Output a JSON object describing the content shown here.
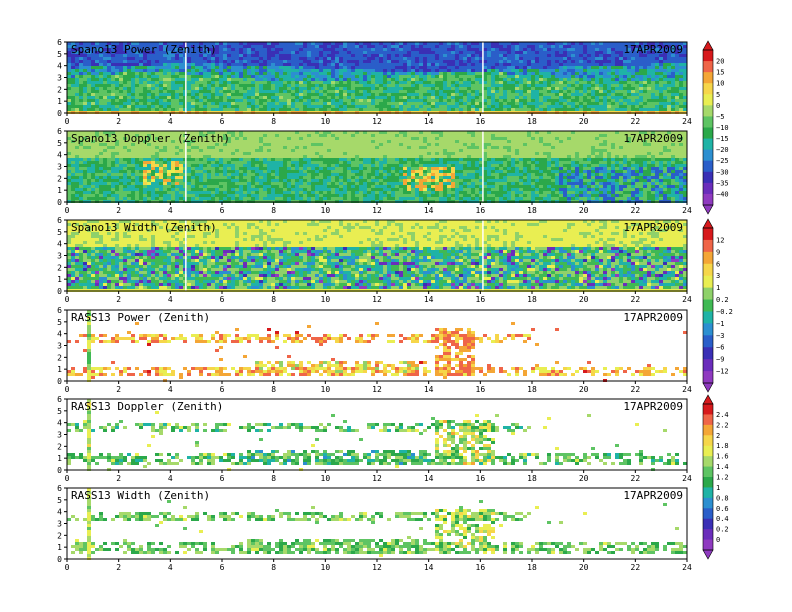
{
  "date_label": "17APR2009",
  "chart_data": [
    {
      "type": "heatmap",
      "title": "Spano13 Power (Zenith)",
      "date": "17APR2009",
      "x_ticks": [
        "0",
        "2",
        "4",
        "6",
        "8",
        "10",
        "12",
        "14",
        "16",
        "18",
        "20",
        "22",
        "24"
      ],
      "y_ticks": [
        "0",
        "1",
        "2",
        "3",
        "4",
        "5",
        "6"
      ],
      "xlim": [
        0,
        24
      ],
      "ylim": [
        0,
        6
      ],
      "colorbar": "cb1",
      "pattern": "power"
    },
    {
      "type": "heatmap",
      "title": "Spano13 Doppler (Zenith)",
      "date": "17APR2009",
      "x_ticks": [
        "0",
        "2",
        "4",
        "6",
        "8",
        "10",
        "12",
        "14",
        "16",
        "18",
        "20",
        "22",
        "24"
      ],
      "y_ticks": [
        "0",
        "1",
        "2",
        "3",
        "4",
        "5",
        "6"
      ],
      "xlim": [
        0,
        24
      ],
      "ylim": [
        0,
        6
      ],
      "colorbar": "cb1",
      "pattern": "doppler"
    },
    {
      "type": "heatmap",
      "title": "Spano13 Width (Zenith)",
      "date": "17APR2009",
      "x_ticks": [
        "0",
        "2",
        "4",
        "6",
        "8",
        "10",
        "12",
        "14",
        "16",
        "18",
        "20",
        "22",
        "24"
      ],
      "y_ticks": [
        "0",
        "1",
        "2",
        "3",
        "4",
        "5",
        "6"
      ],
      "xlim": [
        0,
        24
      ],
      "ylim": [
        0,
        6
      ],
      "colorbar": "cb2",
      "pattern": "width"
    },
    {
      "type": "heatmap",
      "title": "RASS13 Power (Zenith)",
      "date": "17APR2009",
      "x_ticks": [
        "0",
        "2",
        "4",
        "6",
        "8",
        "10",
        "12",
        "14",
        "16",
        "18",
        "20",
        "22",
        "24"
      ],
      "y_ticks": [
        "0",
        "1",
        "2",
        "3",
        "4",
        "5",
        "6"
      ],
      "xlim": [
        0,
        24
      ],
      "ylim": [
        0,
        6
      ],
      "colorbar": "cb2",
      "pattern": "rasspower"
    },
    {
      "type": "heatmap",
      "title": "RASS13 Doppler (Zenith)",
      "date": "17APR2009",
      "x_ticks": [
        "0",
        "2",
        "4",
        "6",
        "8",
        "10",
        "12",
        "14",
        "16",
        "18",
        "20",
        "22",
        "24"
      ],
      "y_ticks": [
        "0",
        "1",
        "2",
        "3",
        "4",
        "5",
        "6"
      ],
      "xlim": [
        0,
        24
      ],
      "ylim": [
        0,
        6
      ],
      "colorbar": "cb3",
      "pattern": "rassdoppler"
    },
    {
      "type": "heatmap",
      "title": "RASS13 Width (Zenith)",
      "date": "17APR2009",
      "x_ticks": [
        "0",
        "2",
        "4",
        "6",
        "8",
        "10",
        "12",
        "14",
        "16",
        "18",
        "20",
        "22",
        "24"
      ],
      "y_ticks": [
        "0",
        "1",
        "2",
        "3",
        "4",
        "5",
        "6"
      ],
      "xlim": [
        0,
        24
      ],
      "ylim": [
        0,
        6
      ],
      "colorbar": "cb3",
      "pattern": "rasswidth"
    }
  ],
  "colorbars": {
    "cb1": {
      "labels": [
        "20",
        "15",
        "10",
        "5",
        "0",
        "−5",
        "−10",
        "−15",
        "−20",
        "−25",
        "−30",
        "−35",
        "−40"
      ],
      "colors": [
        "#d7191c",
        "#ef6548",
        "#f4a636",
        "#f6d64a",
        "#e9ee52",
        "#a6d96a",
        "#5ec463",
        "#2ba84a",
        "#1fb3a6",
        "#2c8fd0",
        "#2a5ec9",
        "#3a2fb5",
        "#6a2dbb",
        "#8f3ac0"
      ]
    },
    "cb2": {
      "labels": [
        "12",
        "9",
        "6",
        "3",
        "1",
        "0.2",
        "−0.2",
        "−1",
        "−3",
        "−6",
        "−9",
        "−12"
      ],
      "colors": [
        "#d7191c",
        "#ef6548",
        "#f4a636",
        "#f6d64a",
        "#e9ee52",
        "#8fd16a",
        "#3fb954",
        "#1fb3a6",
        "#2c8fd0",
        "#2a5ec9",
        "#3a2fb5",
        "#6a2dbb",
        "#8f3ac0"
      ]
    },
    "cb3": {
      "labels": [
        "2.4",
        "2.2",
        "2",
        "1.8",
        "1.6",
        "1.4",
        "1.2",
        "1",
        "0.8",
        "0.6",
        "0.4",
        "0.2",
        "0"
      ],
      "colors": [
        "#d7191c",
        "#ef6548",
        "#f4a636",
        "#f6d64a",
        "#e9ee52",
        "#a6d96a",
        "#5ec463",
        "#2ba84a",
        "#1fb3a6",
        "#2c8fd0",
        "#2a5ec9",
        "#3a2fb5",
        "#6a2dbb",
        "#8f3ac0"
      ]
    }
  }
}
